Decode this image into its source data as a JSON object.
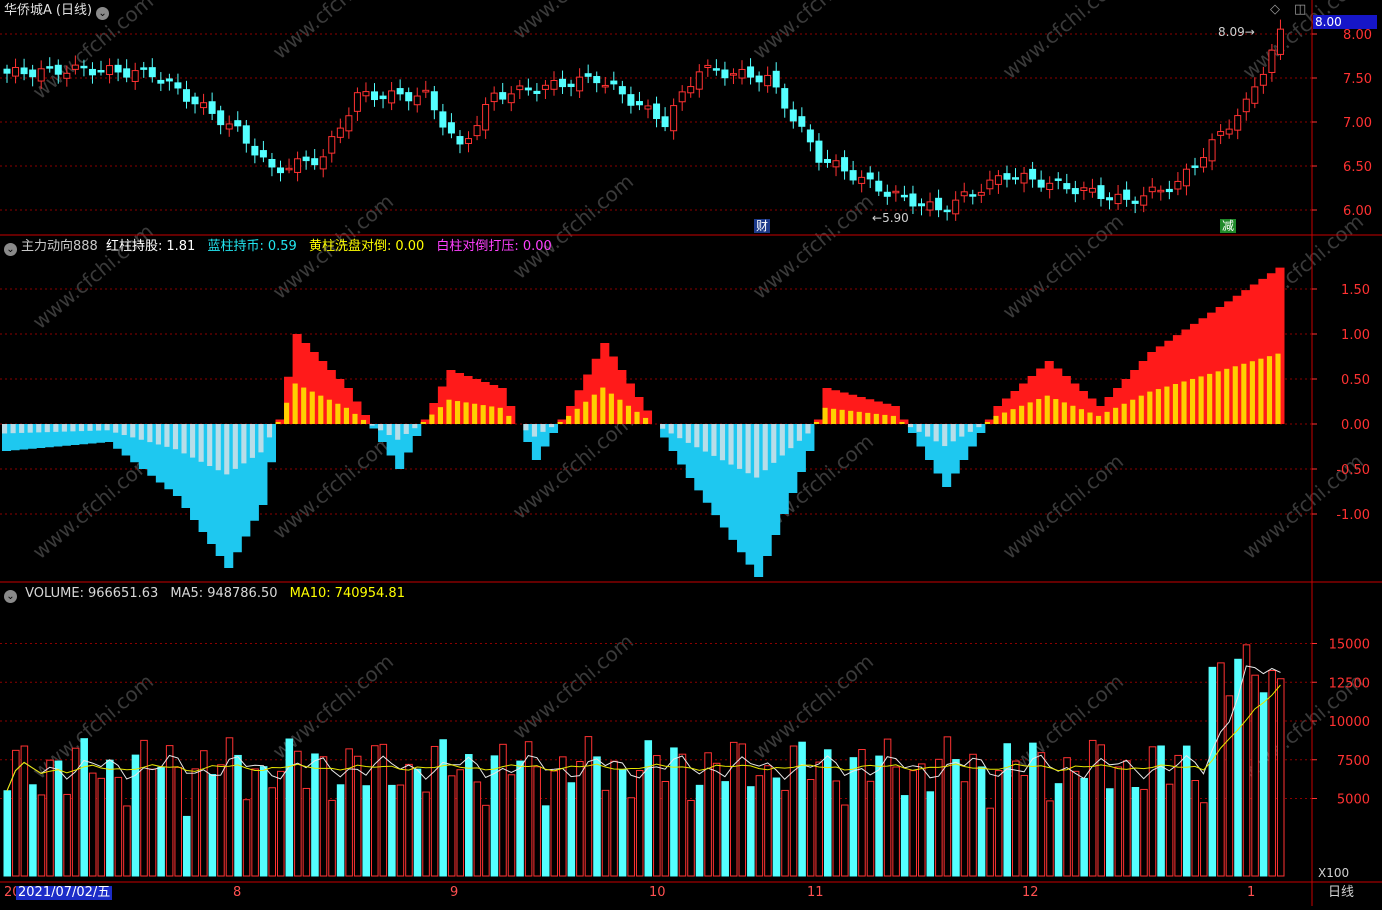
{
  "title": {
    "stock": "华侨城A",
    "period": "(日线)"
  },
  "price_panel": {
    "y_ticks": [
      "6.00",
      "6.50",
      "7.00",
      "7.50",
      "8.00"
    ],
    "current_price": "8.00",
    "high_label": "8.09",
    "low_label": "5.90",
    "event_markers": [
      "财",
      "减"
    ]
  },
  "indicator_panel": {
    "name": "主力动向888",
    "items": [
      {
        "label": "红柱持股:",
        "value": "1.81",
        "color": "#ffffff"
      },
      {
        "label": "蓝柱持币:",
        "value": "0.59",
        "color": "#22e6f0"
      },
      {
        "label": "黄柱洗盘对倒:",
        "value": "0.00",
        "color": "#ffff00"
      },
      {
        "label": "白柱对倒打压:",
        "value": "0.00",
        "color": "#ff40ff"
      }
    ],
    "y_ticks": [
      "-1.00",
      "-0.50",
      "0.00",
      "0.50",
      "1.00",
      "1.50"
    ]
  },
  "volume_panel": {
    "items": [
      {
        "label": "VOLUME:",
        "value": "966651.63",
        "color": "#d8d8d8"
      },
      {
        "label": "MA5:",
        "value": "948786.50",
        "color": "#d8d8d8"
      },
      {
        "label": "MA10:",
        "value": "740954.81",
        "color": "#ffff00"
      }
    ],
    "y_ticks": [
      "5000",
      "7500",
      "10000",
      "12500",
      "15000"
    ],
    "unit": "X100"
  },
  "x_axis": {
    "cursor_date": "2021/07/02/五",
    "start_label": "20",
    "month_labels": [
      "8",
      "9",
      "10",
      "11",
      "12",
      "1"
    ],
    "period_button": "日线"
  },
  "watermark": "www.cfchi.com",
  "colors": {
    "up": "#ff3232",
    "down": "#54ffff",
    "grid": "#8b0000",
    "frame": "#c80000"
  }
}
